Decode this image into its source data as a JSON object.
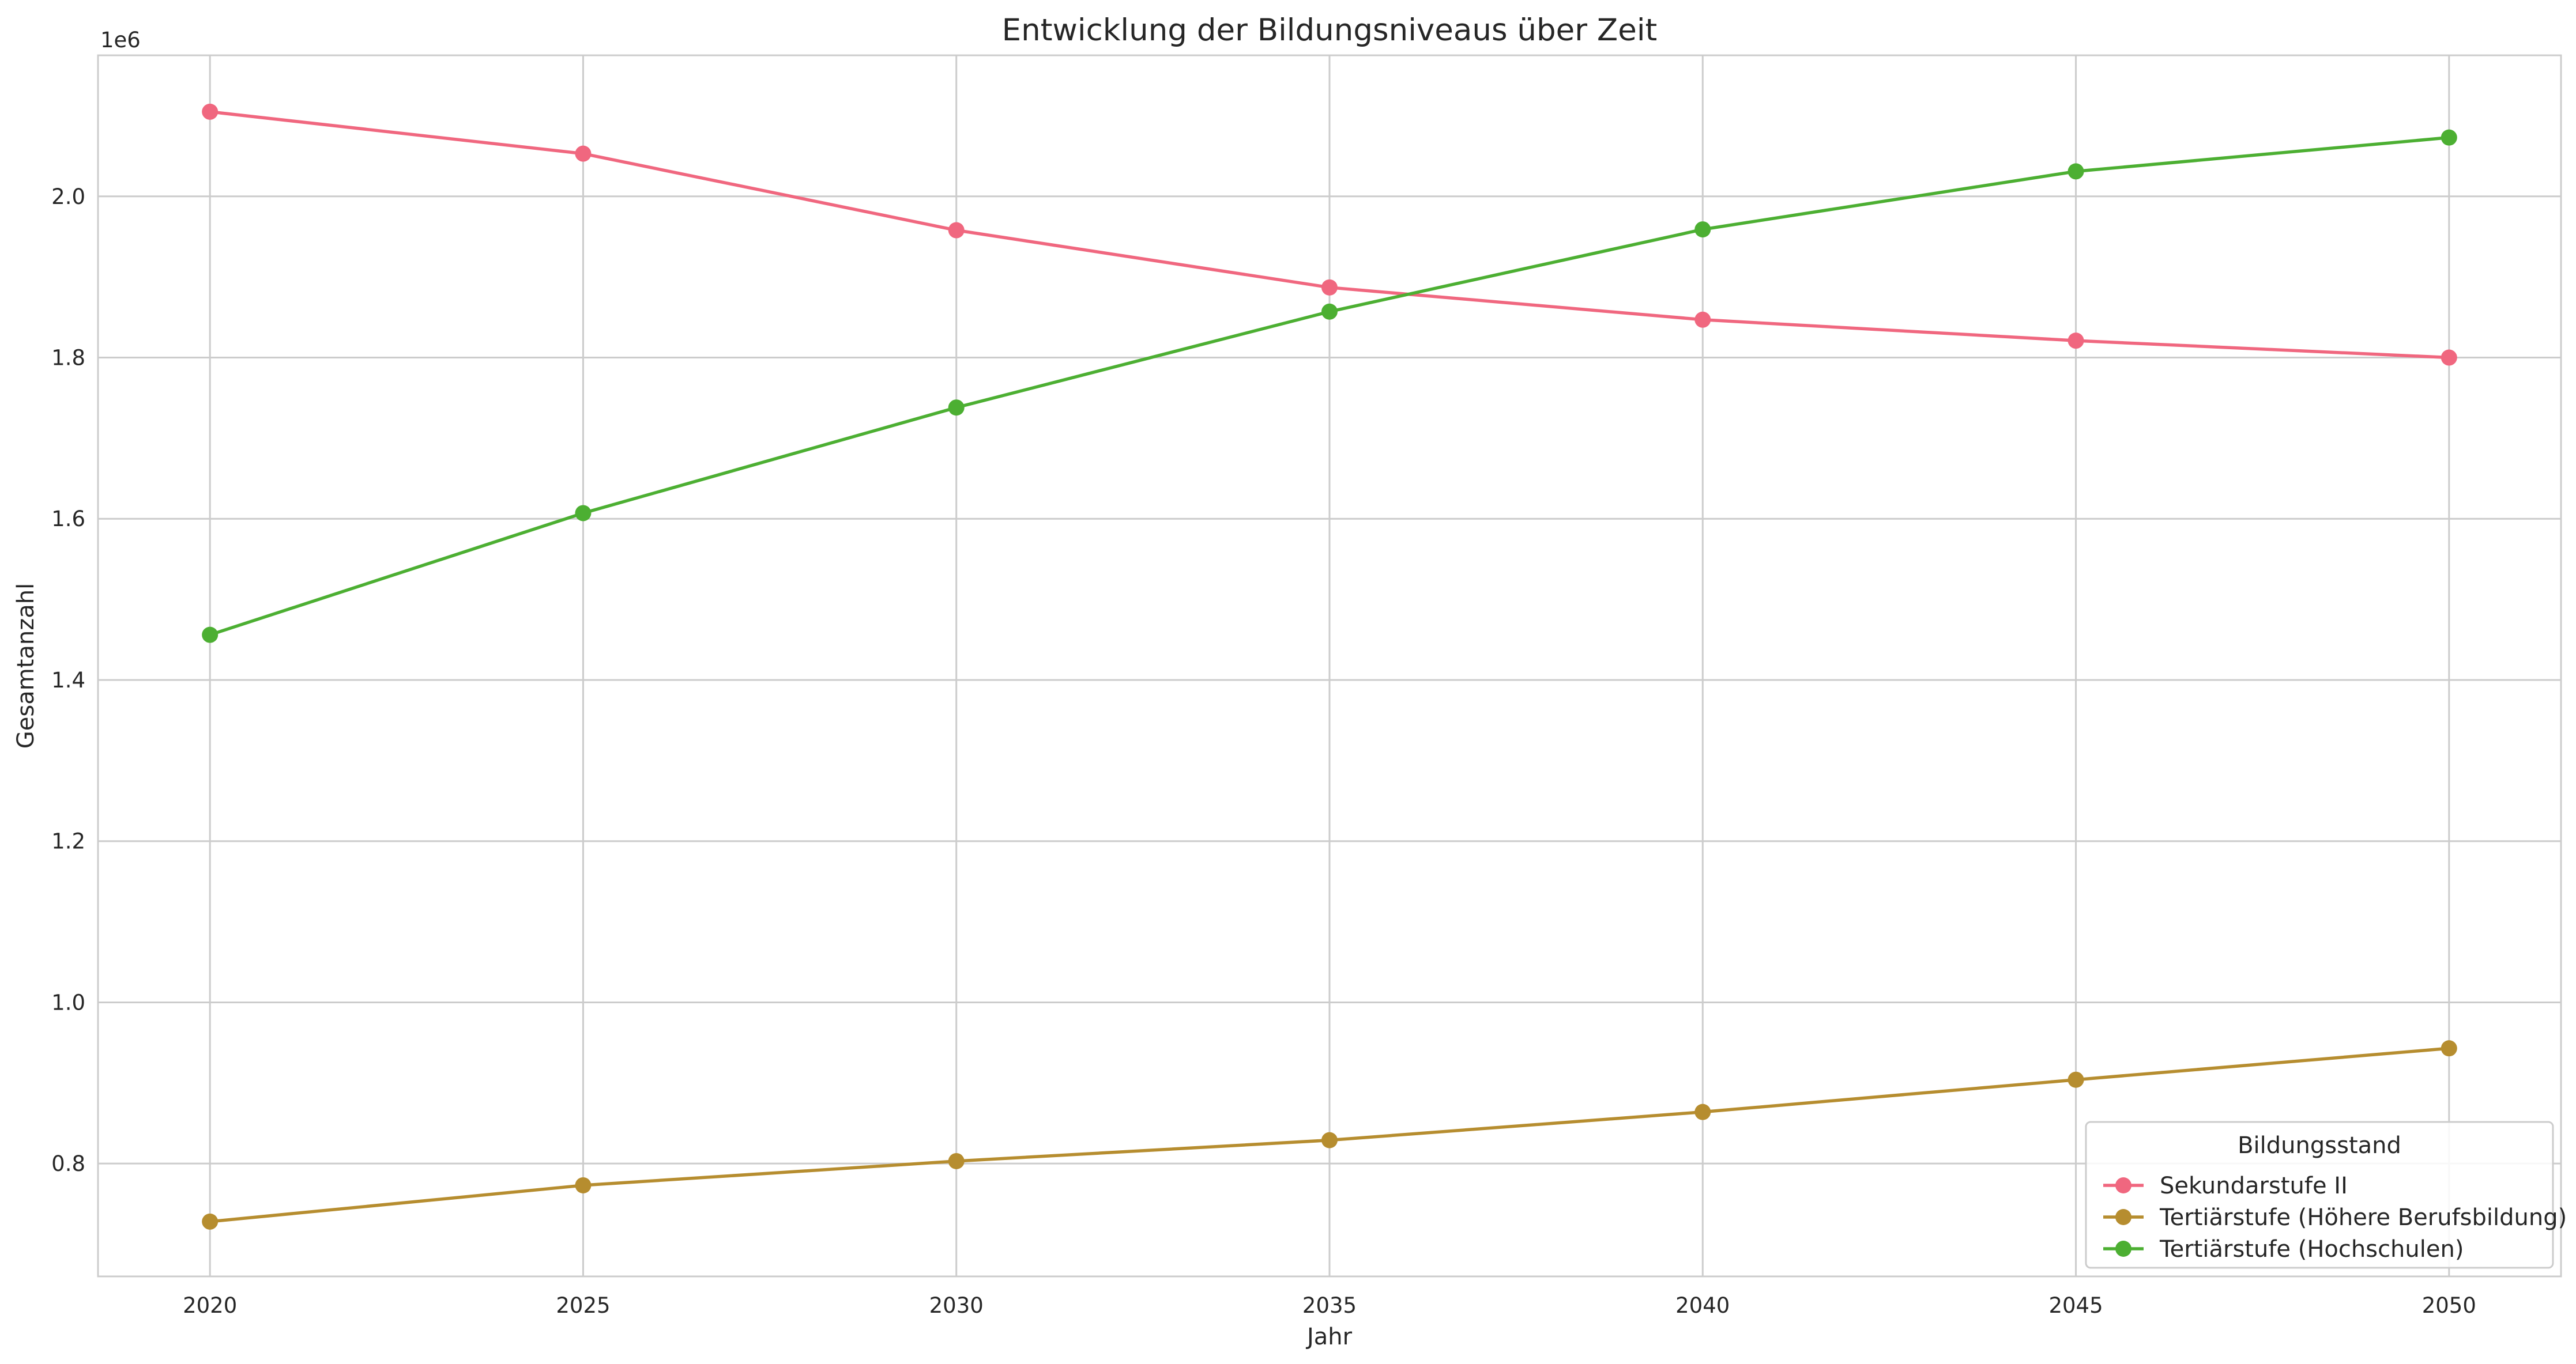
{
  "chart_data": {
    "type": "line",
    "title": "Entwicklung der Bildungsniveaus über Zeit",
    "xlabel": "Jahr",
    "ylabel": "Gesamtanzahl",
    "y_offset_label": "1e6",
    "x": [
      2020,
      2025,
      2030,
      2035,
      2040,
      2045,
      2050
    ],
    "xlim": [
      2018.5,
      2051.5
    ],
    "ylim": [
      660000,
      2175000
    ],
    "x_ticks": [
      2020,
      2025,
      2030,
      2035,
      2040,
      2045,
      2050
    ],
    "y_ticks": [
      800000,
      1000000,
      1200000,
      1400000,
      1600000,
      1800000,
      2000000
    ],
    "y_tick_labels": [
      "0.8",
      "1.0",
      "1.2",
      "1.4",
      "1.6",
      "1.8",
      "2.0"
    ],
    "grid": true,
    "legend": {
      "title": "Bildungsstand",
      "placement": "lower-right"
    },
    "series": [
      {
        "name": "Sekundarstufe II",
        "color": "#f0677f",
        "values": [
          2105000,
          2053000,
          1958000,
          1887000,
          1847000,
          1821000,
          1800000
        ]
      },
      {
        "name": "Tertiärstufe (Höhere Berufsbildung)",
        "color": "#b68d2f",
        "values": [
          728000,
          773000,
          803000,
          829000,
          864000,
          904000,
          943000
        ]
      },
      {
        "name": "Tertiärstufe (Hochschulen)",
        "color": "#4caf32",
        "values": [
          1456000,
          1607000,
          1738000,
          1857000,
          1959000,
          2031000,
          2073000
        ]
      }
    ]
  }
}
